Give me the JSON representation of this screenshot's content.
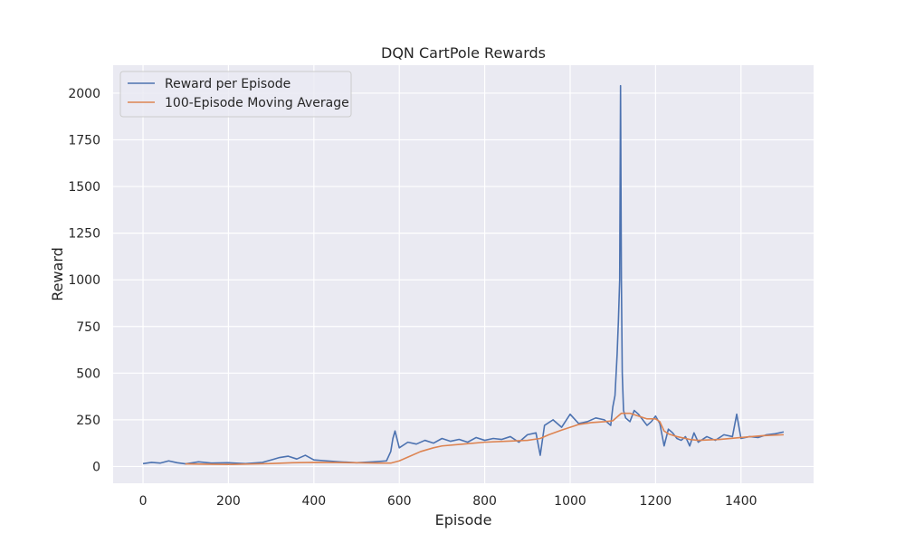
{
  "chart_data": {
    "type": "line",
    "title": "DQN CartPole Rewards",
    "xlabel": "Episode",
    "ylabel": "Reward",
    "xlim": [
      -70,
      1570
    ],
    "ylim": [
      -90,
      2150
    ],
    "x_ticks": [
      0,
      200,
      400,
      600,
      800,
      1000,
      1200,
      1400
    ],
    "y_ticks": [
      0,
      250,
      500,
      750,
      1000,
      1250,
      1500,
      1750,
      2000
    ],
    "grid": true,
    "legend_position": "upper-left",
    "background_color": "#eaeaf2",
    "series": [
      {
        "name": "Reward per Episode",
        "color": "#4c72b0",
        "x": [
          0,
          20,
          40,
          60,
          80,
          100,
          130,
          160,
          200,
          240,
          280,
          300,
          320,
          340,
          360,
          380,
          400,
          430,
          460,
          500,
          540,
          570,
          580,
          585,
          590,
          600,
          620,
          640,
          660,
          680,
          700,
          720,
          740,
          760,
          780,
          800,
          820,
          840,
          860,
          880,
          900,
          920,
          930,
          940,
          960,
          980,
          1000,
          1020,
          1040,
          1060,
          1080,
          1095,
          1100,
          1105,
          1110,
          1113,
          1116,
          1118,
          1120,
          1122,
          1125,
          1130,
          1140,
          1150,
          1160,
          1170,
          1180,
          1190,
          1200,
          1210,
          1220,
          1230,
          1240,
          1250,
          1260,
          1270,
          1280,
          1290,
          1300,
          1320,
          1340,
          1360,
          1380,
          1390,
          1400,
          1420,
          1440,
          1460,
          1480,
          1500
        ],
        "values": [
          15,
          22,
          18,
          30,
          20,
          14,
          25,
          18,
          20,
          15,
          22,
          35,
          48,
          55,
          40,
          60,
          35,
          30,
          25,
          20,
          25,
          30,
          80,
          150,
          190,
          100,
          130,
          120,
          140,
          125,
          150,
          135,
          145,
          130,
          155,
          140,
          150,
          145,
          160,
          130,
          170,
          180,
          60,
          220,
          250,
          210,
          280,
          230,
          240,
          260,
          250,
          220,
          320,
          380,
          600,
          780,
          1000,
          2040,
          1000,
          500,
          300,
          260,
          240,
          300,
          280,
          250,
          220,
          240,
          270,
          230,
          110,
          200,
          180,
          150,
          140,
          160,
          110,
          180,
          130,
          160,
          140,
          170,
          160,
          280,
          150,
          160,
          155,
          170,
          175,
          185
        ]
      },
      {
        "name": "100-Episode Moving Average",
        "color": "#dd8452",
        "x": [
          99,
          150,
          200,
          250,
          300,
          350,
          400,
          450,
          500,
          550,
          580,
          600,
          620,
          650,
          680,
          700,
          750,
          800,
          850,
          900,
          930,
          950,
          980,
          1000,
          1020,
          1050,
          1080,
          1100,
          1110,
          1120,
          1140,
          1160,
          1180,
          1200,
          1210,
          1220,
          1230,
          1250,
          1280,
          1300,
          1350,
          1400,
          1450,
          1500
        ],
        "values": [
          14,
          12,
          11,
          13,
          16,
          20,
          22,
          21,
          20,
          18,
          18,
          30,
          50,
          80,
          100,
          110,
          120,
          130,
          135,
          140,
          150,
          170,
          195,
          210,
          225,
          235,
          240,
          245,
          265,
          285,
          285,
          270,
          255,
          255,
          240,
          190,
          175,
          160,
          145,
          140,
          145,
          155,
          165,
          170
        ]
      }
    ]
  }
}
